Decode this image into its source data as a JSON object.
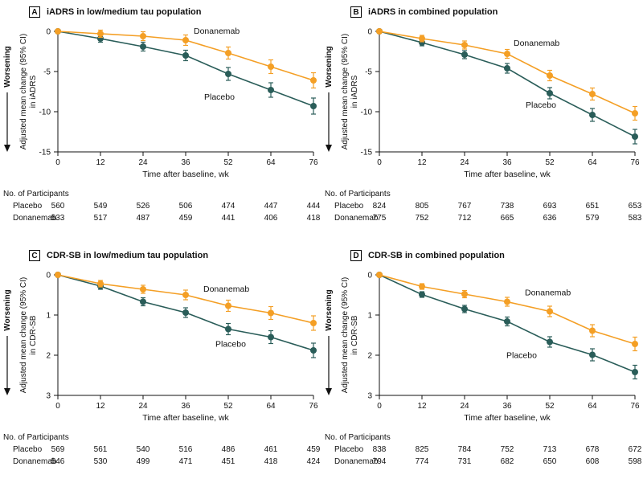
{
  "colors": {
    "donanemab": "#F49F25",
    "placebo": "#2A5D59",
    "axis": "#111111"
  },
  "chart_data": [
    {
      "panel": "A",
      "type": "line",
      "title": "iADRS in low/medium tau population",
      "xlabel": "Time after baseline, wk",
      "direction_label": "Worsening",
      "ylabel_lines": [
        "Adjusted mean change (95% CI)",
        "in iADRS"
      ],
      "x": [
        0,
        12,
        24,
        36,
        52,
        64,
        76
      ],
      "ylim": [
        0,
        -15
      ],
      "yticks": [
        0,
        -5,
        -10,
        -15
      ],
      "series": [
        {
          "name": "Donanemab",
          "color_key": "donanemab",
          "values": [
            0,
            -0.3,
            -0.6,
            -1.1,
            -2.7,
            -4.4,
            -6.1
          ],
          "ci": [
            0,
            0.45,
            0.55,
            0.65,
            0.75,
            0.85,
            0.95
          ],
          "label": {
            "xi": 3,
            "dx": 10,
            "dy": -8
          }
        },
        {
          "name": "Placebo",
          "color_key": "placebo",
          "values": [
            0,
            -0.9,
            -1.9,
            -3.0,
            -5.3,
            -7.3,
            -9.3
          ],
          "ci": [
            0,
            0.45,
            0.55,
            0.65,
            0.8,
            0.9,
            1.0
          ],
          "label": {
            "xi": 4,
            "dx": -30,
            "dy": 32
          }
        }
      ],
      "participants": {
        "header": "No. of Participants",
        "rows": [
          {
            "label": "Placebo",
            "values": [
              560,
              549,
              526,
              506,
              474,
              447,
              444
            ]
          },
          {
            "label": "Donanemab",
            "values": [
              533,
              517,
              487,
              459,
              441,
              406,
              418
            ]
          }
        ]
      }
    },
    {
      "panel": "B",
      "type": "line",
      "title": "iADRS in combined population",
      "xlabel": "Time after baseline, wk",
      "direction_label": "Worsening",
      "ylabel_lines": [
        "Adjusted mean change (95% CI)",
        "in iADRS"
      ],
      "x": [
        0,
        12,
        24,
        36,
        52,
        64,
        76
      ],
      "ylim": [
        0,
        -15
      ],
      "yticks": [
        0,
        -5,
        -10,
        -15
      ],
      "series": [
        {
          "name": "Donanemab",
          "color_key": "donanemab",
          "values": [
            0,
            -0.9,
            -1.7,
            -2.8,
            -5.5,
            -7.8,
            -10.2
          ],
          "ci": [
            0,
            0.4,
            0.5,
            0.55,
            0.65,
            0.75,
            0.85
          ],
          "label": {
            "xi": 3,
            "dx": 8,
            "dy": -10
          }
        },
        {
          "name": "Placebo",
          "color_key": "placebo",
          "values": [
            0,
            -1.4,
            -2.9,
            -4.6,
            -7.7,
            -10.4,
            -13.1
          ],
          "ci": [
            0,
            0.4,
            0.5,
            0.6,
            0.7,
            0.8,
            0.9
          ],
          "label": {
            "xi": 4,
            "dx": -30,
            "dy": 18
          }
        }
      ],
      "participants": {
        "header": "No. of Participants",
        "rows": [
          {
            "label": "Placebo",
            "values": [
              824,
              805,
              767,
              738,
              693,
              651,
              653
            ]
          },
          {
            "label": "Donanemab",
            "values": [
              775,
              752,
              712,
              665,
              636,
              579,
              583
            ]
          }
        ]
      }
    },
    {
      "panel": "C",
      "type": "line",
      "title": "CDR-SB in low/medium tau population",
      "xlabel": "Time after baseline, wk",
      "direction_label": "Worsening",
      "ylabel_lines": [
        "Adjusted mean change (95% CI)",
        "in CDR-SB"
      ],
      "x": [
        0,
        12,
        24,
        36,
        52,
        64,
        76
      ],
      "ylim": [
        0,
        3
      ],
      "yticks": [
        0,
        1,
        2,
        3
      ],
      "series": [
        {
          "name": "Donanemab",
          "color_key": "donanemab",
          "values": [
            0,
            0.22,
            0.36,
            0.5,
            0.77,
            0.95,
            1.2
          ],
          "ci": [
            0,
            0.08,
            0.1,
            0.12,
            0.14,
            0.16,
            0.18
          ],
          "label": {
            "xi": 3,
            "dx": 22,
            "dy": -4
          }
        },
        {
          "name": "Placebo",
          "color_key": "placebo",
          "values": [
            0,
            0.28,
            0.67,
            0.94,
            1.35,
            1.55,
            1.88
          ],
          "ci": [
            0,
            0.08,
            0.1,
            0.12,
            0.14,
            0.16,
            0.18
          ],
          "label": {
            "xi": 4,
            "dx": -16,
            "dy": 22
          }
        }
      ],
      "participants": {
        "header": "No. of Participants",
        "rows": [
          {
            "label": "Placebo",
            "values": [
              569,
              561,
              540,
              516,
              486,
              461,
              459
            ]
          },
          {
            "label": "Donanemab",
            "values": [
              546,
              530,
              499,
              471,
              451,
              418,
              424
            ]
          }
        ]
      }
    },
    {
      "panel": "D",
      "type": "line",
      "title": "CDR-SB in combined population",
      "xlabel": "Time after baseline, wk",
      "direction_label": "Worsening",
      "ylabel_lines": [
        "Adjusted mean change (95% CI)",
        "in CDR-SB"
      ],
      "x": [
        0,
        12,
        24,
        36,
        52,
        64,
        76
      ],
      "ylim": [
        0,
        3
      ],
      "yticks": [
        0,
        1,
        2,
        3
      ],
      "series": [
        {
          "name": "Donanemab",
          "color_key": "donanemab",
          "values": [
            0,
            0.29,
            0.48,
            0.67,
            0.91,
            1.39,
            1.72
          ],
          "ci": [
            0,
            0.07,
            0.09,
            0.11,
            0.13,
            0.15,
            0.17
          ],
          "label": {
            "xi": 3,
            "dx": 22,
            "dy": -8
          }
        },
        {
          "name": "Placebo",
          "color_key": "placebo",
          "values": [
            0,
            0.49,
            0.85,
            1.16,
            1.67,
            1.99,
            2.42
          ],
          "ci": [
            0,
            0.07,
            0.09,
            0.11,
            0.13,
            0.15,
            0.17
          ],
          "label": {
            "xi": 4,
            "dx": -54,
            "dy": 20
          }
        }
      ],
      "participants": {
        "header": "No. of Participants",
        "rows": [
          {
            "label": "Placebo",
            "values": [
              838,
              825,
              784,
              752,
              713,
              678,
              672
            ]
          },
          {
            "label": "Donanemab",
            "values": [
              794,
              774,
              731,
              682,
              650,
              608,
              598
            ]
          }
        ]
      }
    }
  ]
}
